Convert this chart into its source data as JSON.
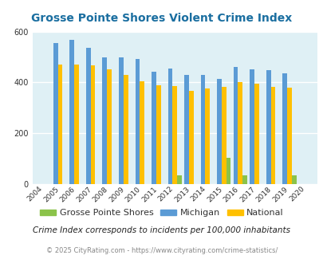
{
  "title": "Grosse Pointe Shores Violent Crime Index",
  "years": [
    2004,
    2005,
    2006,
    2007,
    2008,
    2009,
    2010,
    2011,
    2012,
    2013,
    2014,
    2015,
    2016,
    2017,
    2018,
    2019,
    2020
  ],
  "gps": [
    0,
    0,
    0,
    0,
    0,
    0,
    0,
    0,
    35,
    0,
    0,
    105,
    35,
    0,
    0,
    35,
    0
  ],
  "michigan": [
    0,
    555,
    568,
    537,
    500,
    498,
    492,
    443,
    455,
    428,
    428,
    413,
    460,
    450,
    447,
    435,
    0
  ],
  "national": [
    0,
    469,
    470,
    466,
    452,
    428,
    404,
    388,
    387,
    366,
    375,
    383,
    400,
    395,
    383,
    379,
    0
  ],
  "color_gps": "#8bc34a",
  "color_michigan": "#5b9bd5",
  "color_national": "#ffc000",
  "color_bg": "#dff0f5",
  "ylim": [
    0,
    600
  ],
  "yticks": [
    0,
    200,
    400,
    600
  ],
  "legend_labels": [
    "Grosse Pointe Shores",
    "Michigan",
    "National"
  ],
  "footnote1": "Crime Index corresponds to incidents per 100,000 inhabitants",
  "footnote2": "© 2025 CityRating.com - https://www.cityrating.com/crime-statistics/"
}
